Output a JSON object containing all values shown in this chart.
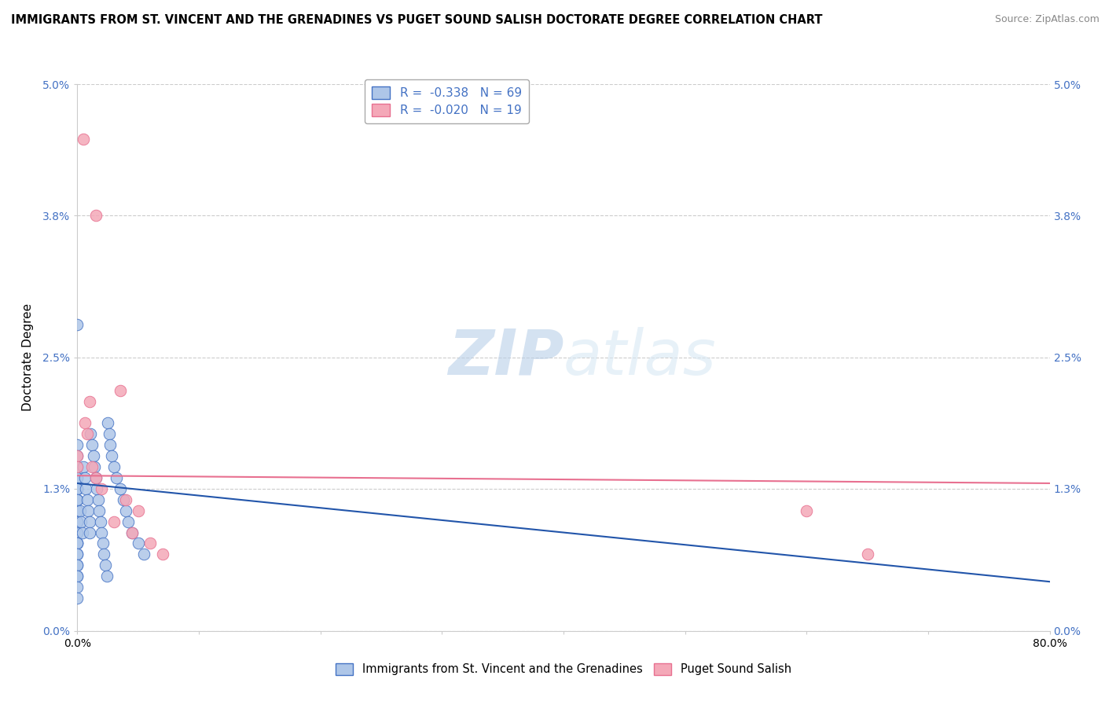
{
  "title": "IMMIGRANTS FROM ST. VINCENT AND THE GRENADINES VS PUGET SOUND SALISH DOCTORATE DEGREE CORRELATION CHART",
  "source": "Source: ZipAtlas.com",
  "ylabel": "Doctorate Degree",
  "yticks_labels": [
    "0.0%",
    "1.3%",
    "2.5%",
    "3.8%",
    "5.0%"
  ],
  "ytick_vals": [
    0.0,
    1.3,
    2.5,
    3.8,
    5.0
  ],
  "xtick_vals": [
    0.0,
    10.0,
    20.0,
    30.0,
    40.0,
    50.0,
    60.0,
    70.0,
    80.0
  ],
  "xlim": [
    0.0,
    80.0
  ],
  "ylim": [
    0.0,
    5.0
  ],
  "legend_blue_r": "-0.338",
  "legend_blue_n": "69",
  "legend_pink_r": "-0.020",
  "legend_pink_n": "19",
  "blue_color": "#aec6e8",
  "pink_color": "#f4a8b8",
  "blue_edge_color": "#4472c4",
  "pink_edge_color": "#e87090",
  "blue_line_color": "#2255aa",
  "pink_line_color": "#e87090",
  "watermark_color": "#dce8f5",
  "blue_scatter_x": [
    0.0,
    0.0,
    0.0,
    0.0,
    0.0,
    0.0,
    0.0,
    0.0,
    0.0,
    0.0,
    0.0,
    0.0,
    0.0,
    0.0,
    0.0,
    0.0,
    0.0,
    0.0,
    0.0,
    0.0,
    0.0,
    0.0,
    0.0,
    0.0,
    0.0,
    0.0,
    0.0,
    0.0,
    0.0,
    0.0,
    0.2,
    0.3,
    0.4,
    0.5,
    0.6,
    0.7,
    0.8,
    0.9,
    1.0,
    1.0,
    1.1,
    1.2,
    1.3,
    1.4,
    1.5,
    1.6,
    1.7,
    1.8,
    1.9,
    2.0,
    2.1,
    2.2,
    2.3,
    2.4,
    2.5,
    2.6,
    2.7,
    2.8,
    3.0,
    3.2,
    3.5,
    3.8,
    4.0,
    4.2,
    4.5,
    5.0,
    5.5,
    0.0,
    0.0
  ],
  "blue_scatter_y": [
    1.5,
    1.4,
    1.3,
    1.3,
    1.2,
    1.1,
    1.1,
    1.0,
    1.0,
    0.9,
    0.9,
    0.8,
    0.8,
    0.8,
    0.7,
    0.7,
    0.6,
    0.6,
    0.5,
    0.5,
    1.7,
    1.6,
    1.5,
    1.4,
    1.3,
    1.2,
    1.2,
    1.1,
    2.8,
    1.0,
    1.1,
    1.0,
    0.9,
    1.5,
    1.4,
    1.3,
    1.2,
    1.1,
    1.0,
    0.9,
    1.8,
    1.7,
    1.6,
    1.5,
    1.4,
    1.3,
    1.2,
    1.1,
    1.0,
    0.9,
    0.8,
    0.7,
    0.6,
    0.5,
    1.9,
    1.8,
    1.7,
    1.6,
    1.5,
    1.4,
    1.3,
    1.2,
    1.1,
    1.0,
    0.9,
    0.8,
    0.7,
    0.4,
    0.3
  ],
  "pink_scatter_x": [
    0.5,
    1.5,
    0.0,
    0.0,
    0.6,
    0.8,
    1.0,
    1.2,
    1.5,
    2.0,
    3.0,
    3.5,
    4.0,
    4.5,
    5.0,
    6.0,
    7.0,
    60.0,
    65.0
  ],
  "pink_scatter_y": [
    4.5,
    3.8,
    1.6,
    1.5,
    1.9,
    1.8,
    2.1,
    1.5,
    1.4,
    1.3,
    1.0,
    2.2,
    1.2,
    0.9,
    1.1,
    0.8,
    0.7,
    1.1,
    0.7
  ],
  "blue_reg_x0": 0.0,
  "blue_reg_x1": 80.0,
  "blue_reg_y0": 1.35,
  "blue_reg_y1": 0.45,
  "pink_reg_x0": 0.0,
  "pink_reg_x1": 80.0,
  "pink_reg_y0": 1.42,
  "pink_reg_y1": 1.35
}
